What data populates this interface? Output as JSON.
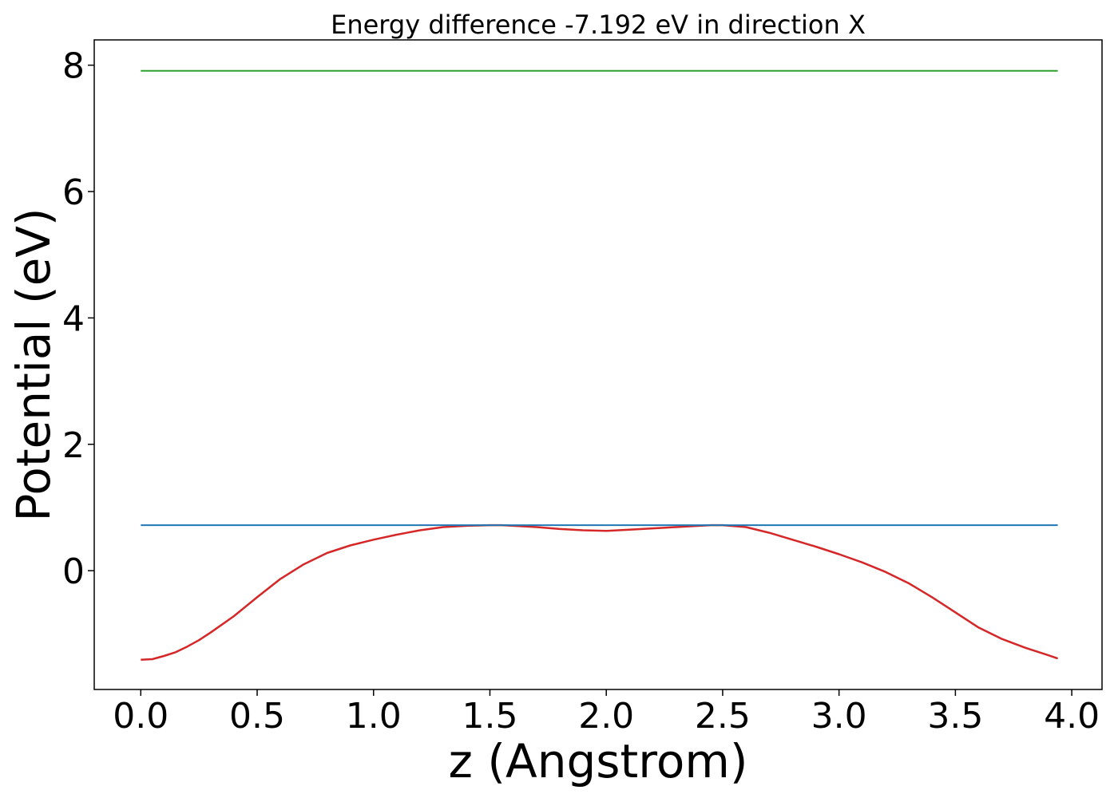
{
  "chart_data": {
    "type": "line",
    "title": "Energy difference -7.192 eV in direction X",
    "xlabel": "z (Angstrom)",
    "ylabel": "Potential (eV)",
    "xlim": [
      -0.2,
      4.13
    ],
    "ylim": [
      -1.88,
      8.4
    ],
    "x_ticks": [
      0.0,
      0.5,
      1.0,
      1.5,
      2.0,
      2.5,
      3.0,
      3.5,
      4.0
    ],
    "x_tick_labels": [
      "0.0",
      "0.5",
      "1.0",
      "1.5",
      "2.0",
      "2.5",
      "3.0",
      "3.5",
      "4.0"
    ],
    "y_ticks": [
      0,
      2,
      4,
      6,
      8
    ],
    "y_tick_labels": [
      "0",
      "2",
      "4",
      "6",
      "8"
    ],
    "grid": false,
    "series": [
      {
        "color": "#d62728",
        "x": [
          0.0,
          0.05,
          0.1,
          0.15,
          0.2,
          0.25,
          0.3,
          0.4,
          0.5,
          0.6,
          0.7,
          0.8,
          0.9,
          1.0,
          1.1,
          1.2,
          1.3,
          1.4,
          1.5,
          1.55,
          1.6,
          1.7,
          1.8,
          1.9,
          2.0,
          2.1,
          2.2,
          2.3,
          2.4,
          2.45,
          2.5,
          2.6,
          2.7,
          2.8,
          2.9,
          3.0,
          3.1,
          3.2,
          3.3,
          3.4,
          3.5,
          3.6,
          3.7,
          3.8,
          3.9,
          3.94
        ],
        "y": [
          -1.41,
          -1.4,
          -1.35,
          -1.29,
          -1.2,
          -1.1,
          -0.98,
          -0.72,
          -0.42,
          -0.13,
          0.1,
          0.28,
          0.4,
          0.49,
          0.57,
          0.64,
          0.69,
          0.71,
          0.72,
          0.72,
          0.71,
          0.69,
          0.66,
          0.64,
          0.63,
          0.65,
          0.67,
          0.69,
          0.71,
          0.72,
          0.72,
          0.69,
          0.6,
          0.49,
          0.38,
          0.26,
          0.13,
          -0.02,
          -0.2,
          -0.42,
          -0.66,
          -0.9,
          -1.08,
          -1.22,
          -1.34,
          -1.39
        ]
      },
      {
        "color": "#1f77b4",
        "x": [
          0.0,
          3.94
        ],
        "y": [
          0.72,
          0.72
        ]
      },
      {
        "color": "#2ca02c",
        "x": [
          0.0,
          3.94
        ],
        "y": [
          7.91,
          7.91
        ]
      }
    ]
  }
}
